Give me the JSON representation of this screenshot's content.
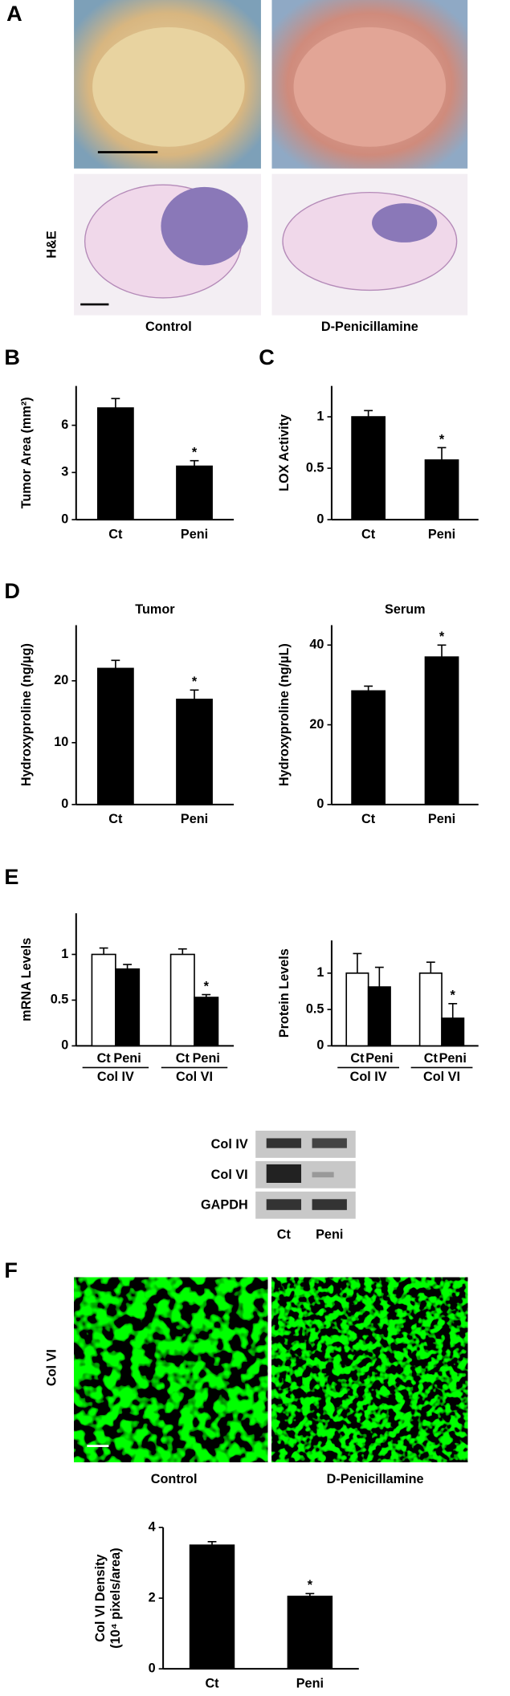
{
  "panels": {
    "a": "A",
    "b": "B",
    "c": "C",
    "d": "D",
    "e": "E",
    "f": "F"
  },
  "images_a": {
    "stain": "H&E",
    "left": "Control",
    "right": "D-Penicillamine"
  },
  "blot": {
    "rows": [
      "Col IV",
      "Col VI",
      "GAPDH"
    ],
    "lanes": [
      "Ct",
      "Peni"
    ]
  },
  "images_f": {
    "stain": "Col VI",
    "left": "Control",
    "right": "D-Penicillamine"
  },
  "chart_data": [
    {
      "type": "bar",
      "ylabel": [
        "Tumor Area (mm²)"
      ],
      "categories": [
        "Ct",
        "Peni"
      ],
      "values": [
        7.1,
        3.4
      ],
      "errors": [
        0.6,
        0.35
      ],
      "annotations": [
        null,
        "*"
      ],
      "color": "#000000",
      "ylim": [
        0,
        8.5
      ],
      "yticks": [
        0,
        3,
        6
      ]
    },
    {
      "type": "bar",
      "ylabel": [
        "LOX Activity"
      ],
      "categories": [
        "Ct",
        "Peni"
      ],
      "values": [
        1.0,
        0.58
      ],
      "errors": [
        0.06,
        0.12
      ],
      "annotations": [
        null,
        "*"
      ],
      "color": "#000000",
      "ylim": [
        0,
        1.3
      ],
      "yticks": [
        0,
        0.5,
        1
      ]
    },
    {
      "type": "bar",
      "title": "Tumor",
      "ylabel": [
        "Hydroxyproline (ng/µg)"
      ],
      "categories": [
        "Ct",
        "Peni"
      ],
      "values": [
        22,
        17
      ],
      "errors": [
        1.3,
        1.5
      ],
      "annotations": [
        null,
        "*"
      ],
      "color": "#000000",
      "ylim": [
        0,
        29
      ],
      "yticks": [
        0,
        10,
        20
      ]
    },
    {
      "type": "bar",
      "title": "Serum",
      "ylabel": [
        "Hydroxyproline (ng/µL)"
      ],
      "categories": [
        "Ct",
        "Peni"
      ],
      "values": [
        28.5,
        37
      ],
      "errors": [
        1.2,
        3
      ],
      "annotations": [
        null,
        "*"
      ],
      "color": "#000000",
      "ylim": [
        0,
        45
      ],
      "yticks": [
        0,
        20,
        40
      ]
    },
    {
      "type": "grouped_bar",
      "ylabel": [
        "mRNA Levels"
      ],
      "categories": [
        "Col IV",
        "Col VI"
      ],
      "series": [
        {
          "name": "Ct",
          "color": "#ffffff",
          "values": [
            1.0,
            1.0
          ],
          "errors": [
            0.07,
            0.06
          ],
          "annotations": [
            null,
            null
          ]
        },
        {
          "name": "Peni",
          "color": "#000000",
          "values": [
            0.84,
            0.53
          ],
          "errors": [
            0.05,
            0.03
          ],
          "annotations": [
            null,
            "*"
          ]
        }
      ],
      "ylim": [
        0,
        1.45
      ],
      "yticks": [
        0,
        0.5,
        1
      ]
    },
    {
      "type": "grouped_bar",
      "ylabel": [
        "Protein Levels"
      ],
      "categories": [
        "Col IV",
        "Col VI"
      ],
      "series": [
        {
          "name": "Ct",
          "color": "#ffffff",
          "values": [
            1.0,
            1.0
          ],
          "errors": [
            0.27,
            0.15
          ],
          "annotations": [
            null,
            null
          ]
        },
        {
          "name": "Peni",
          "color": "#000000",
          "values": [
            0.81,
            0.38
          ],
          "errors": [
            0.27,
            0.2
          ],
          "annotations": [
            null,
            "*"
          ]
        }
      ],
      "ylim": [
        0,
        1.45
      ],
      "yticks": [
        0,
        0.5,
        1
      ]
    },
    {
      "type": "bar",
      "ylabel": [
        "Col VI Density",
        "(10⁴ pixels/area)"
      ],
      "categories": [
        "Ct",
        "Peni"
      ],
      "values": [
        3.5,
        2.05
      ],
      "errors": [
        0.1,
        0.08
      ],
      "annotations": [
        null,
        "*"
      ],
      "color": "#000000",
      "ylim": [
        0,
        4
      ],
      "yticks": [
        0,
        2,
        4
      ]
    }
  ]
}
